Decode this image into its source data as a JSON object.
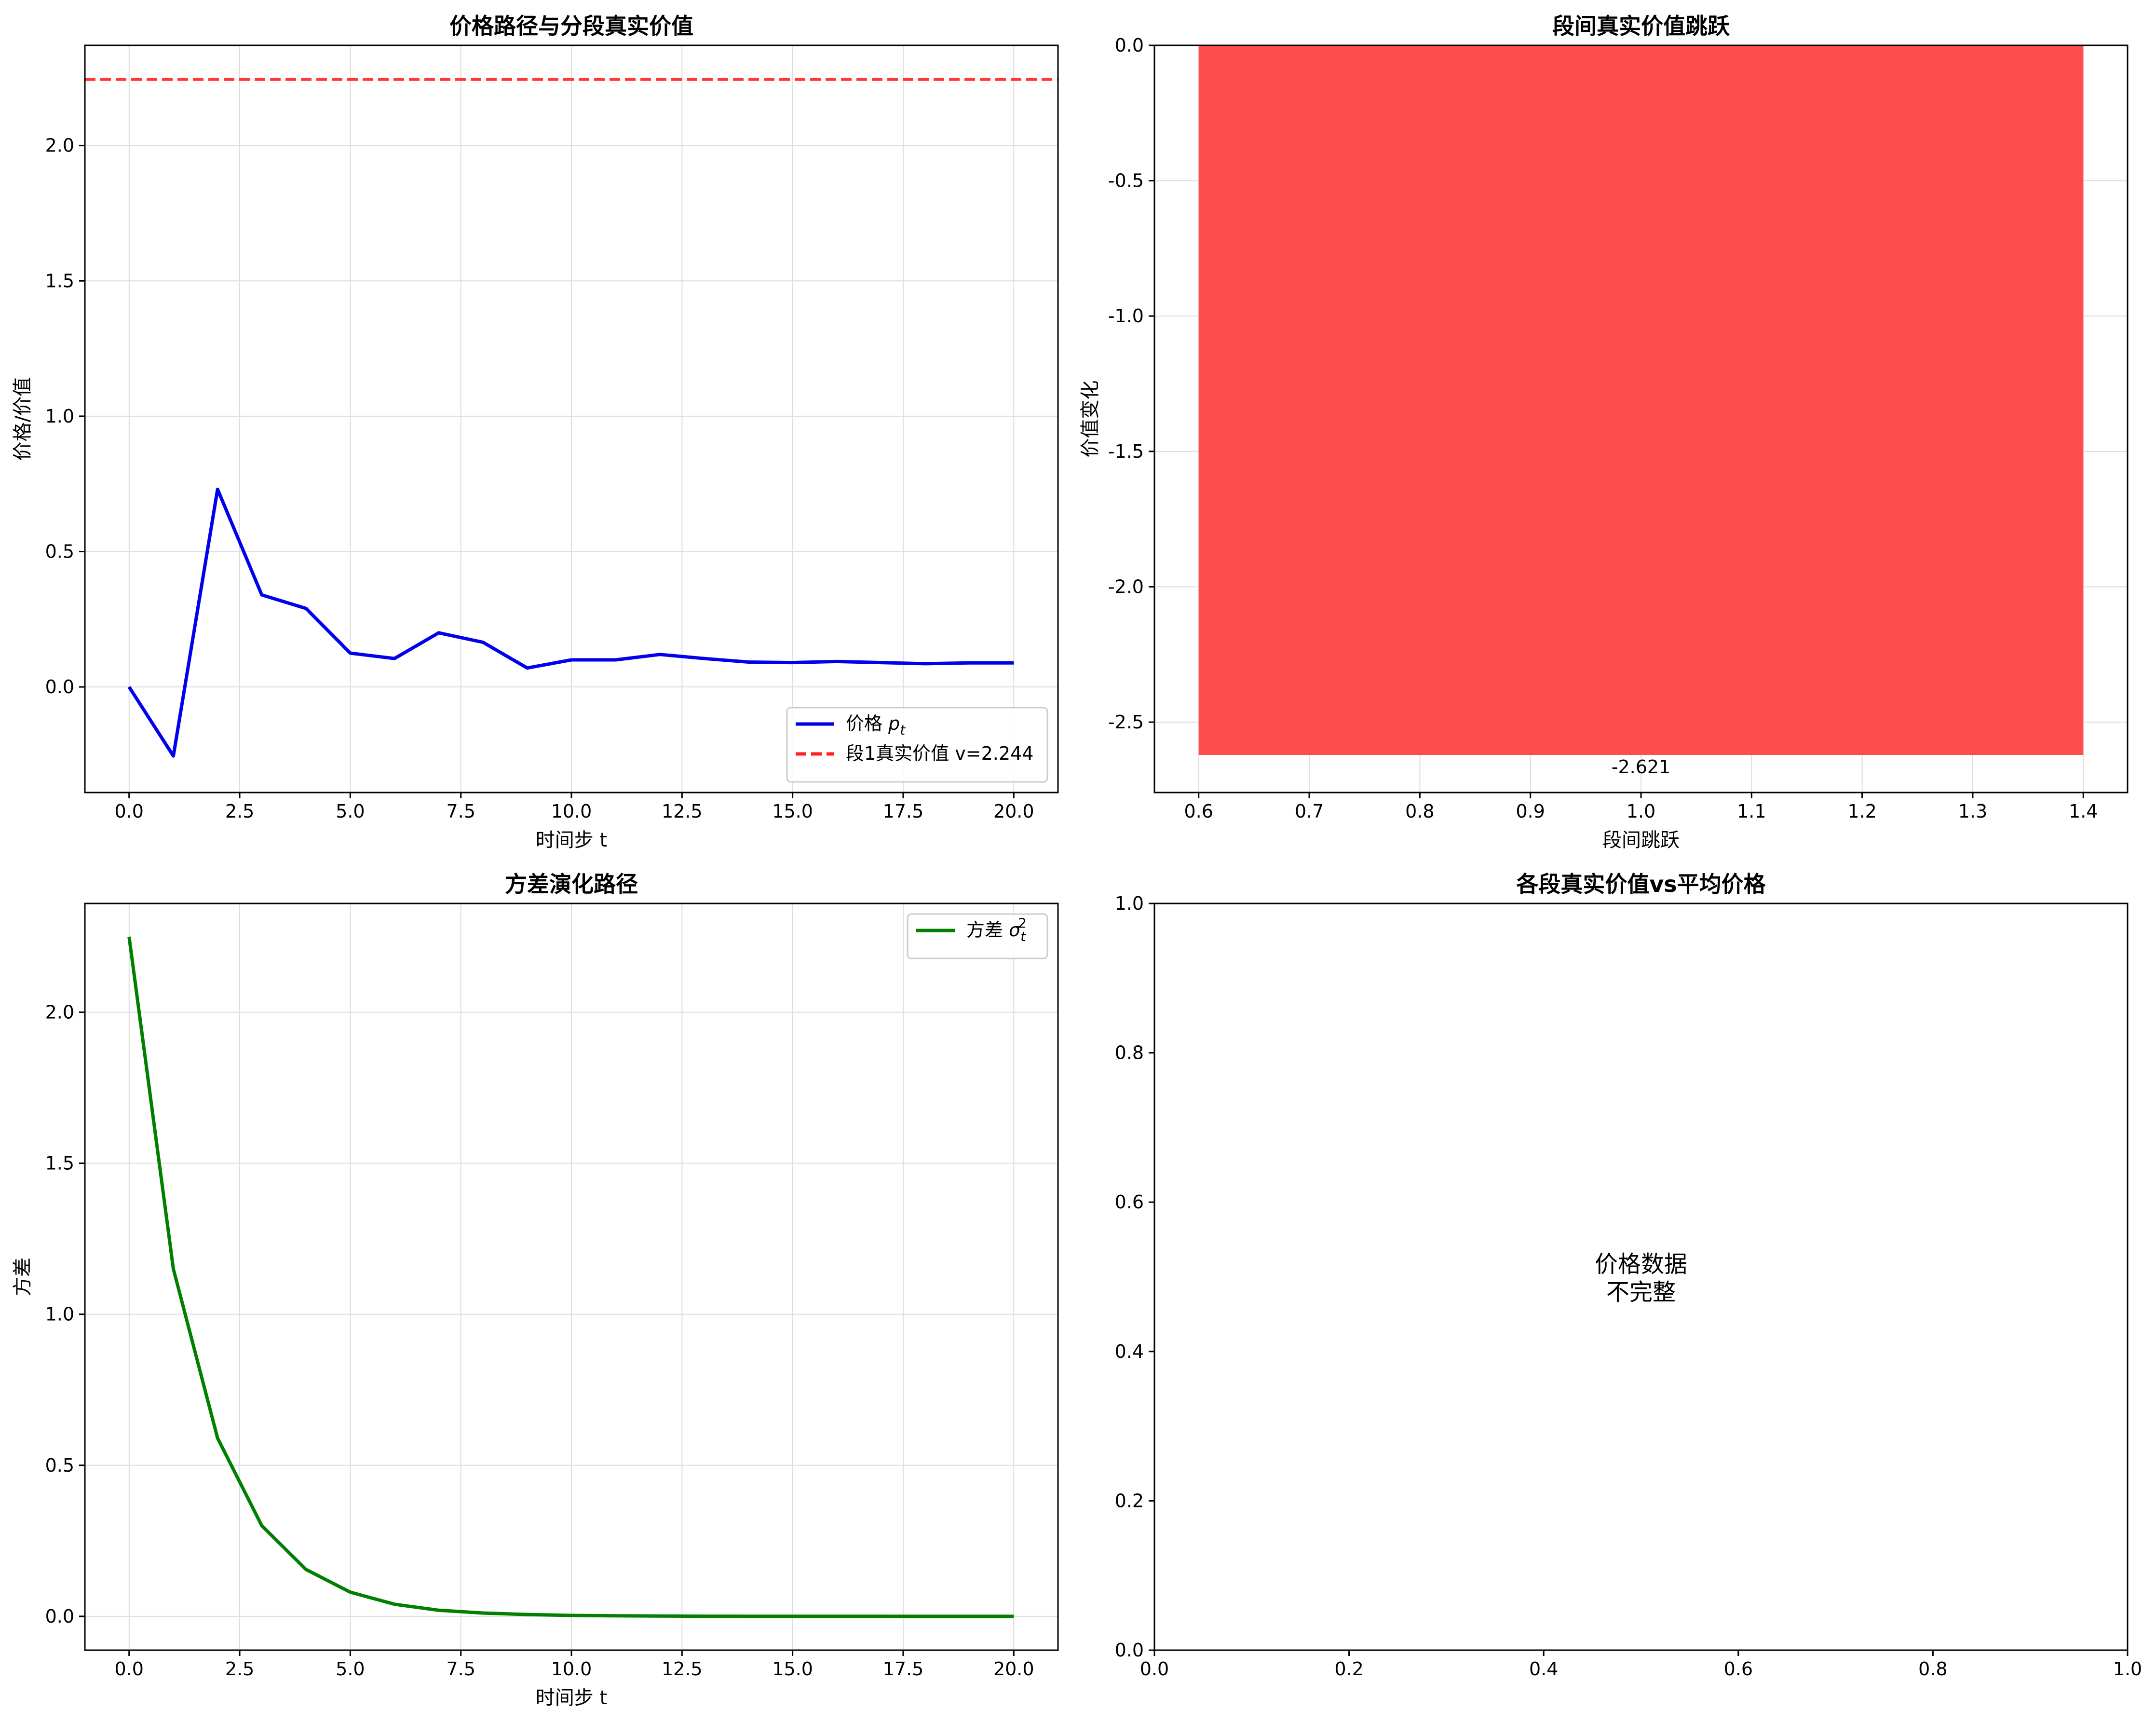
{
  "chart_data": [
    {
      "type": "line",
      "title": "价格路径与分段真实价值",
      "xlabel": "时间步 t",
      "ylabel": "价格/价值",
      "xlim": [
        -1.0,
        21.0
      ],
      "ylim": [
        -0.39,
        2.37
      ],
      "grid": true,
      "legend_position": "lower-right",
      "x_ticks": [
        "0.0",
        "2.5",
        "5.0",
        "7.5",
        "10.0",
        "12.5",
        "15.0",
        "17.5",
        "20.0"
      ],
      "y_ticks": [
        "0.0",
        "0.5",
        "1.0",
        "1.5",
        "2.0"
      ],
      "series": [
        {
          "name_parts": [
            "价格 ",
            "p",
            "t"
          ],
          "color": "#0000ee",
          "style": "solid",
          "x": [
            0,
            1,
            2,
            3,
            4,
            5,
            6,
            7,
            8,
            9,
            10,
            11,
            12,
            13,
            14,
            15,
            16,
            17,
            18,
            19,
            20
          ],
          "y": [
            0.0,
            -0.255,
            0.73,
            0.34,
            0.29,
            0.125,
            0.105,
            0.2,
            0.165,
            0.07,
            0.1,
            0.1,
            0.12,
            0.105,
            0.092,
            0.09,
            0.094,
            0.09,
            0.086,
            0.089,
            0.089
          ]
        },
        {
          "name": "段1真实价值 v=2.244",
          "color": "#ff2222",
          "style": "dashed",
          "hline": 2.244
        }
      ]
    },
    {
      "type": "bar",
      "title": "段间真实价值跳跃",
      "xlabel": "段间跳跃",
      "ylabel": "价值变化",
      "xlim": [
        0.56,
        1.44
      ],
      "ylim": [
        -2.76,
        0.0
      ],
      "grid": true,
      "x_ticks": [
        "0.6",
        "0.7",
        "0.8",
        "0.9",
        "1.0",
        "1.1",
        "1.2",
        "1.3",
        "1.4"
      ],
      "y_ticks": [
        "0.0",
        "-0.5",
        "-1.0",
        "-1.5",
        "-2.0",
        "-2.5"
      ],
      "bars": [
        {
          "x": 1.0,
          "width": 0.8,
          "value": -2.621,
          "label": "-2.621",
          "color": "#ff4c4c"
        }
      ]
    },
    {
      "type": "line",
      "title": "方差演化路径",
      "xlabel": "时间步 t",
      "ylabel": "方差",
      "xlim": [
        -1.0,
        21.0
      ],
      "ylim": [
        -0.112,
        2.36
      ],
      "grid": true,
      "legend_position": "upper-right",
      "x_ticks": [
        "0.0",
        "2.5",
        "5.0",
        "7.5",
        "10.0",
        "12.5",
        "15.0",
        "17.5",
        "20.0"
      ],
      "y_ticks": [
        "0.0",
        "0.5",
        "1.0",
        "1.5",
        "2.0"
      ],
      "series": [
        {
          "name_parts": [
            "方差 ",
            "σ",
            "t",
            "2"
          ],
          "color": "#007f00",
          "style": "solid",
          "x": [
            0,
            1,
            2,
            3,
            4,
            5,
            6,
            7,
            8,
            9,
            10,
            11,
            12,
            13,
            14,
            15,
            16,
            17,
            18,
            19,
            20
          ],
          "y": [
            2.25,
            1.15,
            0.59,
            0.3,
            0.155,
            0.08,
            0.04,
            0.02,
            0.011,
            0.006,
            0.003,
            0.0017,
            0.0009,
            0.0005,
            0.0003,
            0.0002,
            0.0001,
            0.0001,
            0.0,
            0.0,
            0.0
          ]
        }
      ]
    },
    {
      "type": "scatter",
      "title": "各段真实价值vs平均价格",
      "xlim": [
        0.0,
        1.0
      ],
      "ylim": [
        0.0,
        1.0
      ],
      "grid": false,
      "x_ticks": [
        "0.0",
        "0.2",
        "0.4",
        "0.6",
        "0.8",
        "1.0"
      ],
      "y_ticks": [
        "0.0",
        "0.2",
        "0.4",
        "0.6",
        "0.8",
        "1.0"
      ],
      "message_lines": [
        "价格数据",
        "不完整"
      ]
    }
  ]
}
